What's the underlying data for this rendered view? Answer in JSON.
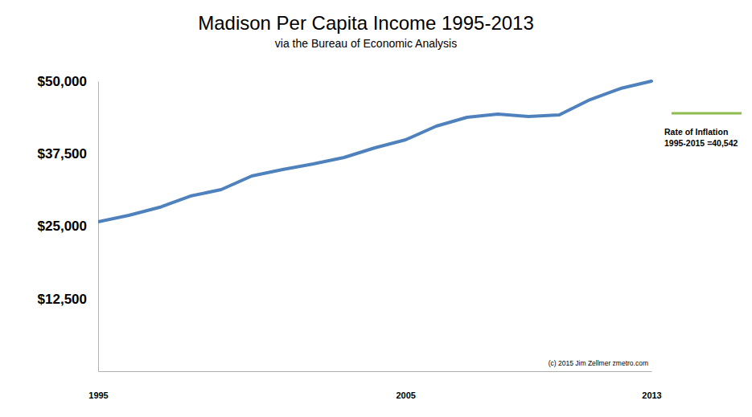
{
  "chart_data": {
    "type": "line",
    "title": "Madison Per Capita Income 1995-2013",
    "subtitle": "via the Bureau of Economic Analysis",
    "x": [
      1995,
      1996,
      1997,
      1998,
      1999,
      2000,
      2001,
      2002,
      2003,
      2004,
      2005,
      2006,
      2007,
      2008,
      2009,
      2010,
      2011,
      2012,
      2013
    ],
    "values": [
      25760,
      26870,
      28250,
      30190,
      31300,
      33660,
      34760,
      35730,
      36840,
      38500,
      39890,
      42240,
      43770,
      44320,
      43900,
      44180,
      46810,
      48750,
      50000
    ],
    "color": "#4f81bd",
    "xlim": [
      1995,
      2013
    ],
    "xticks": [
      1995,
      2005,
      2013
    ],
    "ylim": [
      0,
      50000
    ],
    "yticks": [
      {
        "value": 12500,
        "label": "$12,500"
      },
      {
        "value": 25000,
        "label": "$25,000"
      },
      {
        "value": 37500,
        "label": "$37,500"
      },
      {
        "value": 50000,
        "label": "$50,000"
      }
    ],
    "grid": false,
    "annotations": [
      "Rate of Inflation",
      "1995-2015 =40,542",
      "(c) 2015 Jim Zellmer zmetro.com"
    ]
  }
}
